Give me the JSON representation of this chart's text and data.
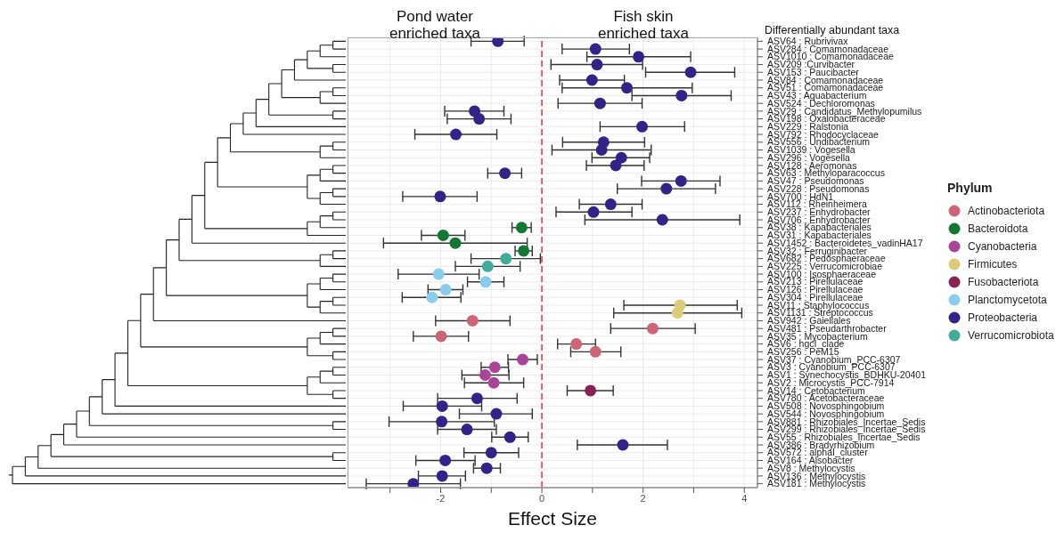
{
  "chart_data": {
    "type": "scatter",
    "orientation": "horizontal",
    "xlabel": "Effect Size",
    "legend_title": "Phylum",
    "legend": "right",
    "grid": true,
    "marker": "circle",
    "annotations": [
      "Pond water\nenriched taxa",
      "Fish skin\nenriched taxa",
      "Differentially abundant taxa"
    ],
    "xlim": [
      -3.84,
      4.26
    ],
    "xticks": [
      {
        "value": -3,
        "label": null
      },
      -2,
      {
        "value": -1,
        "label": null
      },
      0,
      {
        "value": 1,
        "label": null
      },
      2,
      {
        "value": 3,
        "label": null
      },
      4
    ],
    "ref_lines": [
      {
        "axis": "x",
        "value": 0,
        "color": "#f8373b",
        "line_style": "dashed"
      }
    ],
    "categories": [
      "ASV64 : Rubrivivax",
      "ASV284 : Comamonadaceae",
      "ASV1010 : Comamonadaceae",
      "ASV209 :Curvibacter",
      "ASV153 : Paucibacter",
      "ASV84 : Comamonadaceae",
      "ASV51 : Comamonadaceae",
      "ASV43 : Aquabacterium",
      "ASV524 : Dechloromonas",
      "ASV29 : Candidatus_Methylopumilus",
      "ASV198 : Oxalobacteraceae",
      "ASV229 : Ralstonia",
      "ASV792 : Rhodocyclaceae",
      "ASV556 : Undibacterium",
      "ASV1039 : Vogesella",
      "ASV296 : Vogesella",
      "ASV128 : Aeromonas",
      "ASV63 : Methyloparacoccus",
      "ASV47 : Pseudomonas",
      "ASV228 : Pseudomonas",
      "ASV700 : HdN1",
      "ASV112 : Rheinheimera",
      "ASV237 : Enhydrobacter",
      "ASV706 : Enhydrobacter",
      "ASV38 : Kapabacteriales",
      "ASV31 : Kapabacteriales",
      "ASV1452 : Bacteroidetes_vadinHA17",
      "ASV32 : Ferruginibacter",
      "ASV682 : Pedosphaeraceae",
      "ASV225 : Verrucomicrobiae",
      "ASV100 : Isosphaeraceae",
      "ASV213 : Pirellulaceae",
      "ASV126 : Pirellulaceae",
      "ASV304 : Pirellulaceae",
      "ASV11 : Staphylococcus",
      "ASV1131 : Streptococcus",
      "ASV942 : Gaiellales",
      "ASV481 : Pseudarthrobacter",
      "ASV35 : Mycobacterium",
      "ASV6 : hgcI_clade",
      "ASV256 : PeM15",
      "ASV37 : Cyanobium_PCC-6307",
      "ASV3 : Cyanobium_PCC-6307",
      "ASV1 : Synechocystis_BDHKU-20401",
      "ASV2 : Microcystis_PCC-7914",
      "ASV14 : Cetobacterium",
      "ASV780 : Acetobacteraceae",
      "ASV508 : Novosphingobium",
      "ASV544 : Novosphingobium",
      "ASV881 : Rhizobiales_Incertae_Sedis",
      "ASV299 : Rhizobiales_Incertae_Sedis",
      "ASV55 : Rhizobiales_Incertae_Sedis",
      "ASV386 : Bradyrhizobium",
      "ASV572 : alphaI_cluster",
      "ASV164 : Alsobacter",
      "ASV8 : Methylocystis",
      "ASV136 : Methylocystis",
      "ASV181 : Methylocystis"
    ],
    "series": [
      {
        "name": "Actinobacteriota",
        "color": "#cc6677",
        "values": [
          null,
          null,
          null,
          null,
          null,
          null,
          null,
          null,
          null,
          null,
          null,
          null,
          null,
          null,
          null,
          null,
          null,
          null,
          null,
          null,
          null,
          null,
          null,
          null,
          null,
          null,
          null,
          null,
          null,
          null,
          null,
          null,
          null,
          null,
          null,
          null,
          -1.37,
          2.19,
          -1.99,
          0.68,
          1.06,
          null,
          null,
          null,
          null,
          null,
          null,
          null,
          null,
          null,
          null,
          null,
          null,
          null,
          null,
          null,
          null,
          null
        ],
        "errors": [
          null,
          null,
          null,
          null,
          null,
          null,
          null,
          null,
          null,
          null,
          null,
          null,
          null,
          null,
          null,
          null,
          null,
          null,
          null,
          null,
          null,
          null,
          null,
          null,
          null,
          null,
          null,
          null,
          null,
          null,
          null,
          null,
          null,
          null,
          null,
          null,
          [
            -2.1,
            -0.63
          ],
          [
            1.36,
            3.03
          ],
          [
            -2.54,
            -1.45
          ],
          [
            0.31,
            1.06
          ],
          [
            0.57,
            1.56
          ],
          null,
          null,
          null,
          null,
          null,
          null,
          null,
          null,
          null,
          null,
          null,
          null,
          null,
          null,
          null,
          null,
          null
        ]
      },
      {
        "name": "Bacteroidota",
        "color": "#117733",
        "values": [
          null,
          null,
          null,
          null,
          null,
          null,
          null,
          null,
          null,
          null,
          null,
          null,
          null,
          null,
          null,
          null,
          null,
          null,
          null,
          null,
          null,
          null,
          null,
          null,
          -0.4,
          -1.95,
          -1.71,
          -0.36,
          null,
          null,
          null,
          null,
          null,
          null,
          null,
          null,
          null,
          null,
          null,
          null,
          null,
          null,
          null,
          null,
          null,
          null,
          null,
          null,
          null,
          null,
          null,
          null,
          null,
          null,
          null,
          null,
          null,
          null
        ],
        "errors": [
          null,
          null,
          null,
          null,
          null,
          null,
          null,
          null,
          null,
          null,
          null,
          null,
          null,
          null,
          null,
          null,
          null,
          null,
          null,
          null,
          null,
          null,
          null,
          null,
          [
            -0.59,
            -0.21
          ],
          [
            -2.38,
            -1.52
          ],
          [
            -3.13,
            -0.29
          ],
          [
            -0.53,
            -0.19
          ],
          null,
          null,
          null,
          null,
          null,
          null,
          null,
          null,
          null,
          null,
          null,
          null,
          null,
          null,
          null,
          null,
          null,
          null,
          null,
          null,
          null,
          null,
          null,
          null,
          null,
          null,
          null,
          null,
          null,
          null
        ]
      },
      {
        "name": "Cyanobacteria",
        "color": "#aa4499",
        "values": [
          null,
          null,
          null,
          null,
          null,
          null,
          null,
          null,
          null,
          null,
          null,
          null,
          null,
          null,
          null,
          null,
          null,
          null,
          null,
          null,
          null,
          null,
          null,
          null,
          null,
          null,
          null,
          null,
          null,
          null,
          null,
          null,
          null,
          null,
          null,
          null,
          null,
          null,
          null,
          null,
          null,
          -0.38,
          -0.93,
          -1.12,
          -0.95,
          null,
          null,
          null,
          null,
          null,
          null,
          null,
          null,
          null,
          null,
          null,
          null,
          null
        ],
        "errors": [
          null,
          null,
          null,
          null,
          null,
          null,
          null,
          null,
          null,
          null,
          null,
          null,
          null,
          null,
          null,
          null,
          null,
          null,
          null,
          null,
          null,
          null,
          null,
          null,
          null,
          null,
          null,
          null,
          null,
          null,
          null,
          null,
          null,
          null,
          null,
          null,
          null,
          null,
          null,
          null,
          null,
          [
            -0.67,
            -0.09
          ],
          [
            -1.2,
            -0.66
          ],
          [
            -1.58,
            -0.65
          ],
          [
            -1.53,
            -0.36
          ],
          null,
          null,
          null,
          null,
          null,
          null,
          null,
          null,
          null,
          null,
          null,
          null,
          null
        ]
      },
      {
        "name": "Firmicutes",
        "color": "#ddcc77",
        "values": [
          null,
          null,
          null,
          null,
          null,
          null,
          null,
          null,
          null,
          null,
          null,
          null,
          null,
          null,
          null,
          null,
          null,
          null,
          null,
          null,
          null,
          null,
          null,
          null,
          null,
          null,
          null,
          null,
          null,
          null,
          null,
          null,
          null,
          null,
          2.73,
          2.68,
          null,
          null,
          null,
          null,
          null,
          null,
          null,
          null,
          null,
          null,
          null,
          null,
          null,
          null,
          null,
          null,
          null,
          null,
          null,
          null,
          null,
          null
        ],
        "errors": [
          null,
          null,
          null,
          null,
          null,
          null,
          null,
          null,
          null,
          null,
          null,
          null,
          null,
          null,
          null,
          null,
          null,
          null,
          null,
          null,
          null,
          null,
          null,
          null,
          null,
          null,
          null,
          null,
          null,
          null,
          null,
          null,
          null,
          null,
          [
            1.62,
            3.86
          ],
          [
            1.42,
            3.95
          ],
          null,
          null,
          null,
          null,
          null,
          null,
          null,
          null,
          null,
          null,
          null,
          null,
          null,
          null,
          null,
          null,
          null,
          null,
          null,
          null,
          null,
          null
        ]
      },
      {
        "name": "Fusobacteriota",
        "color": "#882255",
        "values": [
          null,
          null,
          null,
          null,
          null,
          null,
          null,
          null,
          null,
          null,
          null,
          null,
          null,
          null,
          null,
          null,
          null,
          null,
          null,
          null,
          null,
          null,
          null,
          null,
          null,
          null,
          null,
          null,
          null,
          null,
          null,
          null,
          null,
          null,
          null,
          null,
          null,
          null,
          null,
          null,
          null,
          null,
          null,
          null,
          null,
          0.96,
          null,
          null,
          null,
          null,
          null,
          null,
          null,
          null,
          null,
          null,
          null,
          null
        ],
        "errors": [
          null,
          null,
          null,
          null,
          null,
          null,
          null,
          null,
          null,
          null,
          null,
          null,
          null,
          null,
          null,
          null,
          null,
          null,
          null,
          null,
          null,
          null,
          null,
          null,
          null,
          null,
          null,
          null,
          null,
          null,
          null,
          null,
          null,
          null,
          null,
          null,
          null,
          null,
          null,
          null,
          null,
          null,
          null,
          null,
          null,
          [
            0.5,
            1.41
          ],
          null,
          null,
          null,
          null,
          null,
          null,
          null,
          null,
          null,
          null,
          null,
          null
        ]
      },
      {
        "name": "Planctomycetota",
        "color": "#88ccee",
        "values": [
          null,
          null,
          null,
          null,
          null,
          null,
          null,
          null,
          null,
          null,
          null,
          null,
          null,
          null,
          null,
          null,
          null,
          null,
          null,
          null,
          null,
          null,
          null,
          null,
          null,
          null,
          null,
          null,
          null,
          null,
          -2.04,
          -1.11,
          -1.9,
          -2.17,
          null,
          null,
          null,
          null,
          null,
          null,
          null,
          null,
          null,
          null,
          null,
          null,
          null,
          null,
          null,
          null,
          null,
          null,
          null,
          null,
          null,
          null,
          null,
          null
        ],
        "errors": [
          null,
          null,
          null,
          null,
          null,
          null,
          null,
          null,
          null,
          null,
          null,
          null,
          null,
          null,
          null,
          null,
          null,
          null,
          null,
          null,
          null,
          null,
          null,
          null,
          null,
          null,
          null,
          null,
          null,
          null,
          [
            -2.84,
            -1.24
          ],
          [
            -1.47,
            -0.75
          ],
          [
            -2.25,
            -1.56
          ],
          [
            -2.76,
            -1.6
          ],
          null,
          null,
          null,
          null,
          null,
          null,
          null,
          null,
          null,
          null,
          null,
          null,
          null,
          null,
          null,
          null,
          null,
          null,
          null,
          null,
          null,
          null,
          null,
          null
        ]
      },
      {
        "name": "Proteobacteria",
        "color": "#332288",
        "values": [
          -0.87,
          1.06,
          1.91,
          1.09,
          2.94,
          0.99,
          1.68,
          2.76,
          1.15,
          -1.33,
          -1.24,
          1.98,
          -1.7,
          1.22,
          1.18,
          1.57,
          1.46,
          -0.73,
          2.75,
          2.46,
          -2.01,
          1.36,
          1.02,
          2.38,
          null,
          null,
          null,
          null,
          null,
          null,
          null,
          null,
          null,
          null,
          null,
          null,
          null,
          null,
          null,
          null,
          null,
          null,
          null,
          null,
          null,
          null,
          -1.28,
          -1.97,
          -0.9,
          -1.98,
          -1.48,
          -0.63,
          1.6,
          -1.0,
          -1.91,
          -1.09,
          -1.97,
          -2.54
        ],
        "errors": [
          [
            -1.4,
            -0.35
          ],
          [
            0.4,
            1.73
          ],
          [
            0.89,
            2.94
          ],
          [
            0.18,
            1.99
          ],
          [
            2.05,
            3.81
          ],
          [
            0.35,
            1.63
          ],
          [
            0.4,
            2.97
          ],
          [
            1.78,
            3.74
          ],
          [
            0.32,
            1.98
          ],
          [
            -1.92,
            -0.75
          ],
          [
            -1.87,
            -0.61
          ],
          [
            1.15,
            2.82
          ],
          [
            -2.51,
            -0.89
          ],
          [
            0.41,
            2.03
          ],
          [
            0.2,
            2.16
          ],
          [
            0.99,
            2.13
          ],
          [
            0.88,
            2.02
          ],
          [
            -1.07,
            -0.4
          ],
          [
            1.97,
            3.52
          ],
          [
            1.49,
            3.43
          ],
          [
            -2.75,
            -1.28
          ],
          [
            0.74,
            1.98
          ],
          [
            0.28,
            1.78
          ],
          [
            0.85,
            3.91
          ],
          null,
          null,
          null,
          null,
          null,
          null,
          null,
          null,
          null,
          null,
          null,
          null,
          null,
          null,
          null,
          null,
          null,
          null,
          null,
          null,
          null,
          null,
          [
            -2.06,
            -0.49
          ],
          [
            -2.74,
            -1.19
          ],
          [
            -1.63,
            -0.19
          ],
          [
            -3.02,
            -0.94
          ],
          [
            -2.06,
            -0.9
          ],
          [
            -0.99,
            -0.27
          ],
          [
            0.7,
            2.48
          ],
          [
            -1.54,
            -0.46
          ],
          [
            -2.49,
            -1.32
          ],
          [
            -1.35,
            -0.82
          ],
          [
            -2.44,
            -1.51
          ],
          [
            -3.47,
            -1.61
          ]
        ]
      },
      {
        "name": "Verrucomicrobiota",
        "color": "#44aa99",
        "values": [
          null,
          null,
          null,
          null,
          null,
          null,
          null,
          null,
          null,
          null,
          null,
          null,
          null,
          null,
          null,
          null,
          null,
          null,
          null,
          null,
          null,
          null,
          null,
          null,
          null,
          null,
          null,
          null,
          -0.71,
          -1.07,
          null,
          null,
          null,
          null,
          null,
          null,
          null,
          null,
          null,
          null,
          null,
          null,
          null,
          null,
          null,
          null,
          null,
          null,
          null,
          null,
          null,
          null,
          null,
          null,
          null,
          null,
          null,
          null
        ],
        "errors": [
          null,
          null,
          null,
          null,
          null,
          null,
          null,
          null,
          null,
          null,
          null,
          null,
          null,
          null,
          null,
          null,
          null,
          null,
          null,
          null,
          null,
          null,
          null,
          null,
          null,
          null,
          null,
          null,
          [
            -1.4,
            -0.03
          ],
          [
            -1.71,
            -0.43
          ],
          null,
          null,
          null,
          null,
          null,
          null,
          null,
          null,
          null,
          null,
          null,
          null,
          null,
          null,
          null,
          null,
          null,
          null,
          null,
          null,
          null,
          null,
          null,
          null,
          null,
          null,
          null,
          null
        ]
      }
    ]
  }
}
